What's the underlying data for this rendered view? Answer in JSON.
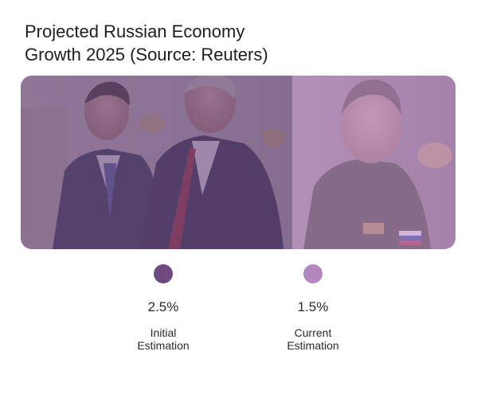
{
  "chart_data": {
    "type": "pictogram",
    "title_lines": [
      "Projected Russian Economy",
      "Growth 2025 (Source: Reuters)"
    ],
    "unit": "%",
    "categories": [
      "Initial Estimation",
      "Current Estimation"
    ],
    "values": [
      2.5,
      1.5
    ],
    "value_labels": [
      "2.5%",
      "1.5%"
    ],
    "legend": [
      {
        "value_label": "2.5%",
        "label_lines": [
          "Initial",
          "Estimation"
        ],
        "color": "#6e4a7e"
      },
      {
        "value_label": "1.5%",
        "label_lines": [
          "Current",
          "Estimation"
        ],
        "color": "#b486c0"
      }
    ],
    "overlay_colors": {
      "first": "#6e4a7e",
      "second": "#b486c0"
    },
    "photo_split_fraction": 0.625
  }
}
